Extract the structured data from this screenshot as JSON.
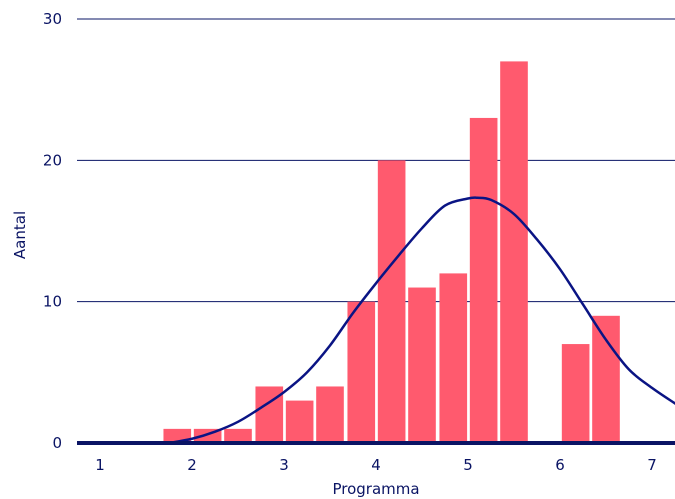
{
  "chart_data": {
    "type": "bar",
    "xlabel": "Programma",
    "ylabel": "Aantal",
    "xlim": [
      0.75,
      7.25
    ],
    "ylim": [
      0,
      30
    ],
    "x_ticks": [
      1,
      2,
      3,
      4,
      5,
      6,
      7
    ],
    "y_ticks": [
      0,
      10,
      20,
      30
    ],
    "grid": "horizontal",
    "bin_width": 0.333,
    "bins": [
      {
        "x": 1.84,
        "value": 1
      },
      {
        "x": 2.17,
        "value": 1
      },
      {
        "x": 2.5,
        "value": 1
      },
      {
        "x": 2.84,
        "value": 4
      },
      {
        "x": 3.17,
        "value": 3
      },
      {
        "x": 3.5,
        "value": 4
      },
      {
        "x": 3.84,
        "value": 10
      },
      {
        "x": 4.17,
        "value": 20
      },
      {
        "x": 4.5,
        "value": 11
      },
      {
        "x": 4.84,
        "value": 12
      },
      {
        "x": 5.17,
        "value": 23
      },
      {
        "x": 5.5,
        "value": 27
      },
      {
        "x": 6.17,
        "value": 7
      },
      {
        "x": 6.5,
        "value": 9
      }
    ],
    "curve": {
      "type": "normal-fit",
      "points": [
        [
          1.75,
          0
        ],
        [
          2.0,
          0.3
        ],
        [
          2.25,
          0.8
        ],
        [
          2.5,
          1.5
        ],
        [
          2.75,
          2.5
        ],
        [
          3.0,
          3.6
        ],
        [
          3.25,
          5.0
        ],
        [
          3.5,
          6.9
        ],
        [
          3.75,
          9.2
        ],
        [
          4.0,
          11.3
        ],
        [
          4.25,
          13.3
        ],
        [
          4.5,
          15.2
        ],
        [
          4.75,
          16.8
        ],
        [
          5.0,
          17.3
        ],
        [
          5.1,
          17.35
        ],
        [
          5.25,
          17.2
        ],
        [
          5.5,
          16.2
        ],
        [
          5.75,
          14.4
        ],
        [
          6.0,
          12.3
        ],
        [
          6.25,
          9.8
        ],
        [
          6.5,
          7.3
        ],
        [
          6.75,
          5.2
        ],
        [
          7.0,
          3.9
        ],
        [
          7.25,
          2.8
        ]
      ]
    },
    "colors": {
      "bar": "#ff5a6e",
      "curve": "#0a1484",
      "grid": "#0a1464",
      "baseline": "#0a1464",
      "text": "#0a1464"
    }
  }
}
